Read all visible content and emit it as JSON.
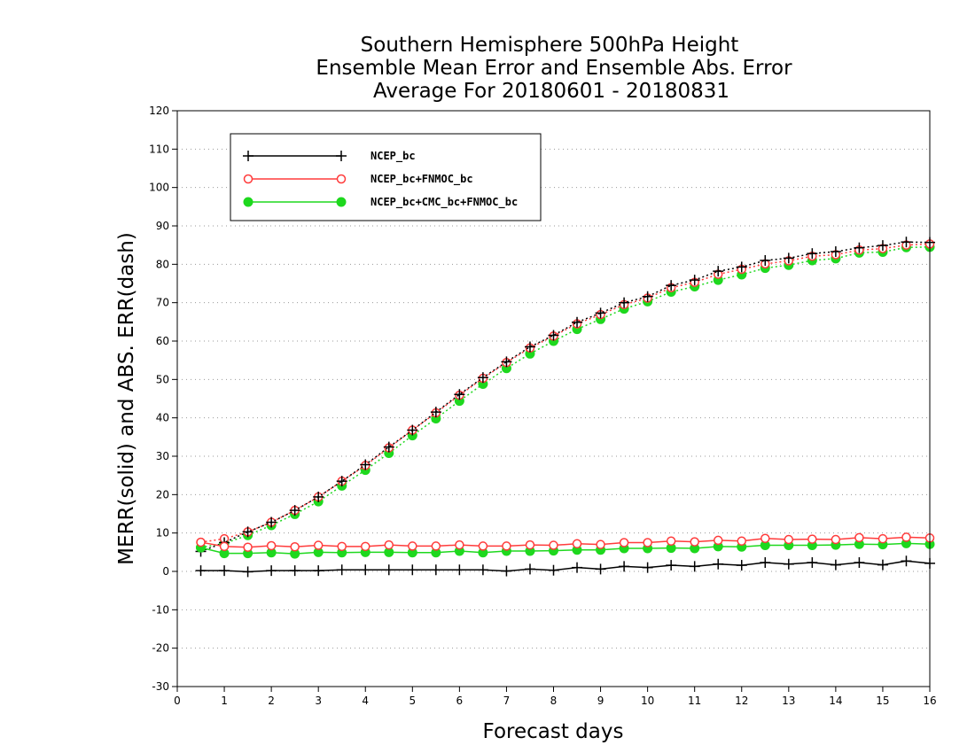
{
  "chart_data": {
    "type": "line",
    "title": [
      "Southern Hemisphere 500hPa Height",
      "Ensemble Mean Error and Ensemble Abs. Error",
      "Average For 20180601 - 20180831"
    ],
    "xlabel": "Forecast days",
    "ylabel": "MERR(solid) and ABS. ERR(dash)",
    "xlim": [
      0,
      16
    ],
    "ylim": [
      -30,
      120
    ],
    "xticks": [
      0,
      1,
      2,
      3,
      4,
      5,
      6,
      7,
      8,
      9,
      10,
      11,
      12,
      13,
      14,
      15,
      16
    ],
    "yticks": [
      -30,
      -20,
      -10,
      0,
      10,
      20,
      30,
      40,
      50,
      60,
      70,
      80,
      90,
      100,
      110,
      120
    ],
    "grid": "horizontal dotted",
    "legend_position": "top-left",
    "x": [
      0.5,
      1,
      1.5,
      2,
      2.5,
      3,
      3.5,
      4,
      4.5,
      5,
      5.5,
      6,
      6.5,
      7,
      7.5,
      8,
      8.5,
      9,
      9.5,
      10,
      10.5,
      11,
      11.5,
      12,
      12.5,
      13,
      13.5,
      14,
      14.5,
      15,
      15.5,
      16
    ],
    "series": [
      {
        "name": "NCEP_bc",
        "color": "#000000",
        "marker": "plus",
        "merr": [
          0.2,
          0.2,
          -0.1,
          0.2,
          0.2,
          0.2,
          0.4,
          0.4,
          0.4,
          0.4,
          0.4,
          0.4,
          0.4,
          0.1,
          0.6,
          0.3,
          1.0,
          0.6,
          1.3,
          1.0,
          1.6,
          1.3,
          1.9,
          1.6,
          2.3,
          1.9,
          2.3,
          1.7,
          2.3,
          1.7,
          2.7,
          2.1
        ],
        "abs_err": [
          5.2,
          7.5,
          10.3,
          12.8,
          15.9,
          19.4,
          23.5,
          27.8,
          32.4,
          36.8,
          41.5,
          46.1,
          50.5,
          54.6,
          58.5,
          61.5,
          64.9,
          67.3,
          70.0,
          71.6,
          74.5,
          75.9,
          78.2,
          79.3,
          81.0,
          81.6,
          82.8,
          83.3,
          84.3,
          84.9,
          85.8,
          85.7
        ]
      },
      {
        "name": "NCEP_bc+FNMOC_bc",
        "color": "#ff3b3b",
        "marker": "open-circle",
        "merr": [
          7.6,
          6.5,
          6.3,
          6.7,
          6.4,
          6.8,
          6.5,
          6.5,
          6.9,
          6.6,
          6.6,
          6.9,
          6.6,
          6.6,
          6.9,
          6.8,
          7.2,
          7.0,
          7.5,
          7.5,
          7.9,
          7.7,
          8.1,
          7.9,
          8.6,
          8.3,
          8.4,
          8.3,
          8.8,
          8.5,
          8.9,
          8.7
        ],
        "abs_err": [
          7.6,
          8.5,
          10.3,
          12.8,
          15.9,
          19.4,
          23.5,
          27.6,
          32.2,
          36.8,
          41.3,
          45.9,
          50.3,
          54.4,
          58.2,
          61.3,
          64.5,
          66.9,
          69.5,
          71.2,
          73.9,
          75.3,
          77.4,
          78.7,
          80.1,
          80.9,
          82.1,
          82.5,
          83.7,
          84.1,
          85.0,
          85.3
        ]
      },
      {
        "name": "NCEP_bc+CMC_bc+FNMOC_bc",
        "color": "#1ed81e",
        "marker": "filled-circle",
        "merr": [
          6.2,
          4.7,
          4.7,
          4.9,
          4.6,
          5.0,
          4.9,
          5.0,
          5.0,
          4.9,
          4.9,
          5.3,
          4.9,
          5.3,
          5.3,
          5.4,
          5.6,
          5.6,
          6.0,
          6.0,
          6.1,
          6.0,
          6.5,
          6.4,
          6.8,
          6.8,
          6.8,
          6.9,
          7.1,
          7.0,
          7.3,
          7.1
        ],
        "abs_err": [
          6.2,
          7.3,
          9.4,
          12.0,
          14.9,
          18.2,
          22.3,
          26.4,
          30.8,
          35.4,
          39.8,
          44.4,
          48.8,
          52.9,
          56.7,
          60.0,
          63.1,
          65.7,
          68.4,
          70.3,
          72.8,
          74.2,
          75.9,
          77.3,
          79.0,
          79.8,
          81.0,
          81.5,
          83.0,
          83.2,
          84.4,
          84.5
        ]
      }
    ]
  }
}
